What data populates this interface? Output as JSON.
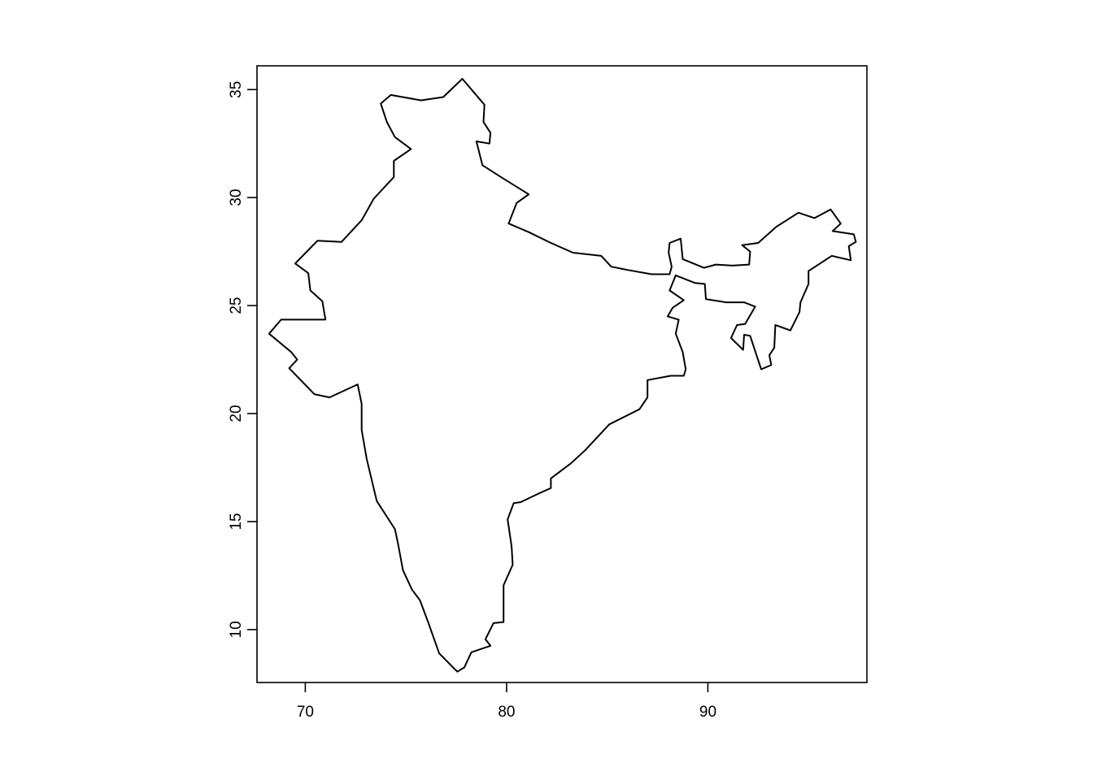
{
  "chart_data": {
    "type": "line",
    "title": "",
    "xlabel": "",
    "ylabel": "",
    "xlim": [
      67.6,
      97.9
    ],
    "ylim": [
      7.55,
      36.1
    ],
    "xticks": [
      70,
      80,
      90
    ],
    "yticks": [
      10,
      15,
      20,
      25,
      30,
      35
    ],
    "grid": false,
    "legend": "none",
    "line_color": "#000000",
    "series": [
      {
        "points": [
          [
            77.8,
            35.5
          ],
          [
            78.9,
            34.3
          ],
          [
            78.85,
            33.5
          ],
          [
            79.2,
            33.0
          ],
          [
            79.15,
            32.5
          ],
          [
            78.5,
            32.6
          ],
          [
            78.8,
            31.5
          ],
          [
            79.8,
            30.9
          ],
          [
            81.1,
            30.15
          ],
          [
            80.5,
            29.75
          ],
          [
            80.1,
            28.8
          ],
          [
            81.1,
            28.4
          ],
          [
            82.2,
            27.9
          ],
          [
            83.3,
            27.45
          ],
          [
            84.7,
            27.3
          ],
          [
            85.2,
            26.8
          ],
          [
            86.0,
            26.65
          ],
          [
            87.2,
            26.45
          ],
          [
            88.1,
            26.45
          ],
          [
            88.2,
            26.8
          ],
          [
            88.05,
            27.45
          ],
          [
            88.1,
            27.9
          ],
          [
            88.65,
            28.1
          ],
          [
            88.75,
            27.15
          ],
          [
            89.8,
            26.75
          ],
          [
            90.4,
            26.9
          ],
          [
            91.2,
            26.85
          ],
          [
            92.05,
            26.9
          ],
          [
            92.1,
            27.5
          ],
          [
            91.7,
            27.8
          ],
          [
            92.5,
            27.9
          ],
          [
            93.4,
            28.65
          ],
          [
            94.5,
            29.3
          ],
          [
            95.3,
            29.05
          ],
          [
            96.1,
            29.45
          ],
          [
            96.6,
            28.8
          ],
          [
            96.2,
            28.45
          ],
          [
            97.25,
            28.3
          ],
          [
            97.35,
            27.95
          ],
          [
            97.0,
            27.75
          ],
          [
            97.1,
            27.1
          ],
          [
            96.15,
            27.3
          ],
          [
            95.0,
            26.6
          ],
          [
            95.0,
            26.0
          ],
          [
            94.6,
            25.15
          ],
          [
            94.55,
            24.7
          ],
          [
            94.1,
            23.85
          ],
          [
            93.35,
            24.1
          ],
          [
            93.3,
            23.05
          ],
          [
            93.05,
            22.7
          ],
          [
            93.15,
            22.25
          ],
          [
            92.65,
            22.05
          ],
          [
            92.1,
            23.6
          ],
          [
            91.8,
            23.65
          ],
          [
            91.75,
            22.95
          ],
          [
            91.15,
            23.5
          ],
          [
            91.45,
            24.1
          ],
          [
            91.85,
            24.15
          ],
          [
            92.35,
            24.95
          ],
          [
            91.8,
            25.15
          ],
          [
            90.9,
            25.15
          ],
          [
            89.9,
            25.3
          ],
          [
            89.85,
            26.0
          ],
          [
            89.35,
            26.05
          ],
          [
            88.4,
            26.4
          ],
          [
            88.1,
            25.7
          ],
          [
            88.8,
            25.25
          ],
          [
            88.25,
            24.9
          ],
          [
            88.0,
            24.5
          ],
          [
            88.55,
            24.35
          ],
          [
            88.4,
            23.7
          ],
          [
            88.75,
            22.85
          ],
          [
            88.9,
            22.05
          ],
          [
            88.8,
            21.75
          ],
          [
            88.15,
            21.75
          ],
          [
            87.0,
            21.55
          ],
          [
            87.0,
            20.75
          ],
          [
            86.6,
            20.2
          ],
          [
            85.1,
            19.5
          ],
          [
            83.9,
            18.3
          ],
          [
            83.2,
            17.7
          ],
          [
            82.2,
            17.0
          ],
          [
            82.2,
            16.55
          ],
          [
            81.6,
            16.3
          ],
          [
            80.7,
            15.9
          ],
          [
            80.35,
            15.85
          ],
          [
            80.05,
            15.1
          ],
          [
            80.25,
            13.85
          ],
          [
            80.3,
            13.0
          ],
          [
            79.85,
            12.05
          ],
          [
            79.85,
            10.35
          ],
          [
            79.35,
            10.3
          ],
          [
            78.95,
            9.55
          ],
          [
            79.2,
            9.25
          ],
          [
            78.25,
            8.95
          ],
          [
            77.9,
            8.25
          ],
          [
            77.55,
            8.05
          ],
          [
            76.65,
            8.9
          ],
          [
            76.1,
            10.35
          ],
          [
            75.7,
            11.35
          ],
          [
            75.3,
            11.85
          ],
          [
            74.85,
            12.75
          ],
          [
            74.6,
            14.0
          ],
          [
            74.45,
            14.65
          ],
          [
            73.55,
            15.95
          ],
          [
            73.05,
            17.9
          ],
          [
            72.8,
            19.25
          ],
          [
            72.8,
            20.45
          ],
          [
            72.6,
            21.35
          ],
          [
            71.2,
            20.75
          ],
          [
            70.45,
            20.9
          ],
          [
            69.2,
            22.1
          ],
          [
            69.6,
            22.5
          ],
          [
            69.3,
            22.85
          ],
          [
            68.2,
            23.7
          ],
          [
            68.8,
            24.35
          ],
          [
            71.0,
            24.35
          ],
          [
            70.85,
            25.2
          ],
          [
            70.25,
            25.7
          ],
          [
            70.15,
            26.5
          ],
          [
            69.5,
            26.95
          ],
          [
            70.6,
            28.0
          ],
          [
            71.8,
            27.95
          ],
          [
            72.8,
            28.95
          ],
          [
            73.4,
            29.95
          ],
          [
            74.4,
            30.95
          ],
          [
            74.4,
            31.7
          ],
          [
            75.25,
            32.25
          ],
          [
            74.45,
            32.8
          ],
          [
            74.05,
            33.5
          ],
          [
            73.75,
            34.35
          ],
          [
            74.25,
            34.75
          ],
          [
            75.75,
            34.5
          ],
          [
            76.85,
            34.65
          ],
          [
            77.8,
            35.5
          ]
        ]
      }
    ]
  }
}
